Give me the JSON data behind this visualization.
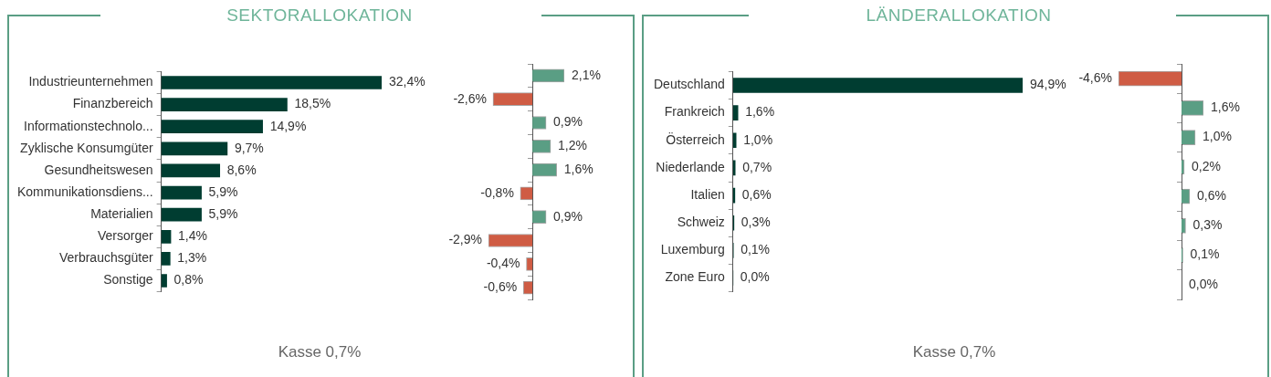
{
  "chart_data": [
    {
      "type": "bar",
      "orientation": "horizontal",
      "title": "SEKTORALLOKATION",
      "categories": [
        "Industrieunternehmen",
        "Finanzbereich",
        "Informationstechnolo...",
        "Zyklische Konsumgüter",
        "Gesundheitswesen",
        "Kommunikationsdiens...",
        "Materialien",
        "Versorger",
        "Verbrauchsgüter",
        "Sonstige"
      ],
      "values": [
        32.4,
        18.5,
        14.9,
        9.7,
        8.6,
        5.9,
        5.9,
        1.4,
        1.3,
        0.8
      ],
      "color": "#003d31",
      "value_labels": [
        "32,4%",
        "18,5%",
        "14,9%",
        "9,7%",
        "8,6%",
        "5,9%",
        "5,9%",
        "1,4%",
        "1,3%",
        "0,8%"
      ],
      "annotations": [
        "Kasse 0,7%"
      ]
    },
    {
      "type": "bar",
      "orientation": "horizontal",
      "categories": [
        null,
        null,
        null,
        null,
        null,
        null,
        null,
        null,
        null,
        null
      ],
      "values": [
        2.1,
        -2.6,
        0.9,
        1.2,
        1.6,
        -0.8,
        0.9,
        -2.9,
        -0.4,
        -0.6
      ],
      "colors": [
        "#5a9e84",
        "#cf5c44",
        "#5a9e84",
        "#5a9e84",
        "#5a9e84",
        "#cf5c44",
        "#5a9e84",
        "#cf5c44",
        "#cf5c44",
        "#cf5c44"
      ],
      "value_labels": [
        "2,1%",
        "-2,6%",
        "0,9%",
        "1,2%",
        "1,6%",
        "-0,8%",
        "0,9%",
        "-2,9%",
        "-0,4%",
        "-0,6%"
      ]
    },
    {
      "type": "bar",
      "orientation": "horizontal",
      "title": "LÄNDERALLOKATION",
      "categories": [
        "Deutschland",
        "Frankreich",
        "Österreich",
        "Niederlande",
        "Italien",
        "Schweiz",
        "Luxemburg",
        "Zone Euro"
      ],
      "values": [
        94.9,
        1.6,
        1.0,
        0.7,
        0.6,
        0.3,
        0.1,
        0.0
      ],
      "color": "#003d31",
      "value_labels": [
        "94,9%",
        "1,6%",
        "1,0%",
        "0,7%",
        "0,6%",
        "0,3%",
        "0,1%",
        "0,0%"
      ],
      "annotations": [
        "Kasse 0,7%"
      ]
    },
    {
      "type": "bar",
      "orientation": "horizontal",
      "categories": [
        null,
        null,
        null,
        null,
        null,
        null,
        null,
        null
      ],
      "values": [
        -4.6,
        1.6,
        1.0,
        0.2,
        0.6,
        0.3,
        0.1,
        0.0
      ],
      "colors": [
        "#cf5c44",
        "#5a9e84",
        "#5a9e84",
        "#5a9e84",
        "#5a9e84",
        "#5a9e84",
        "#5a9e84",
        "#5a9e84"
      ],
      "value_labels": [
        "-4,6%",
        "1,6%",
        "1,0%",
        "0,2%",
        "0,6%",
        "0,3%",
        "0,1%",
        "0,0%"
      ]
    }
  ]
}
